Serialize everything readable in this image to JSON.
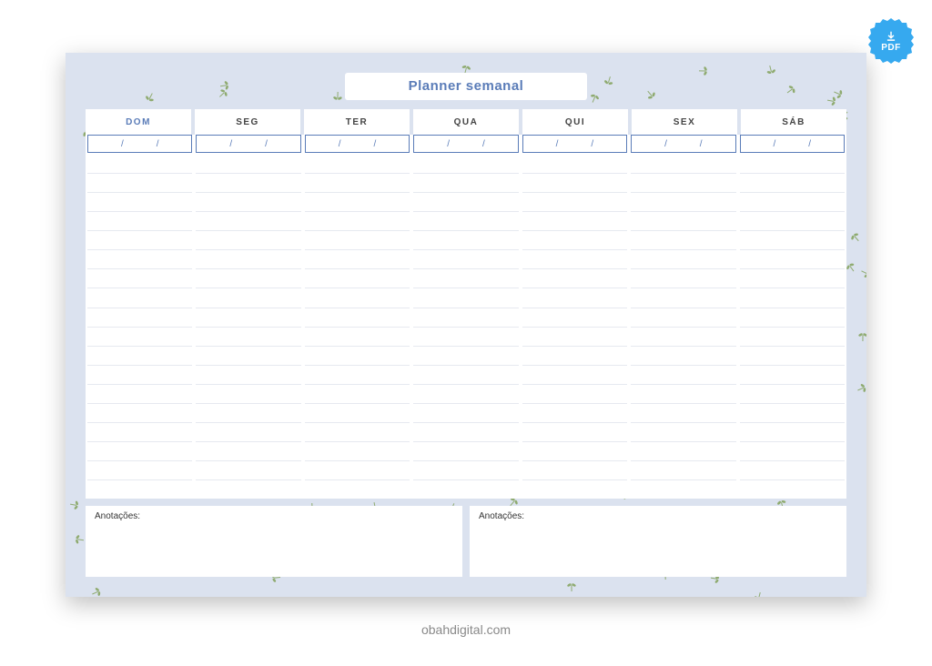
{
  "badge": {
    "label": "PDF",
    "color": "#36a9ef"
  },
  "planner": {
    "title": "Planner semanal",
    "title_color": "#5a7cb8",
    "border_bg": "#dbe2ef",
    "days": [
      "DOM",
      "SEG",
      "TER",
      "QUA",
      "QUI",
      "SEX",
      "SÁB"
    ],
    "first_day_color": "#5a7cb8",
    "day_color": "#444444",
    "date_separator": "/",
    "date_border_color": "#5a7cb8",
    "rows_per_day": 18,
    "line_color": "#e6e9f0",
    "notes_label_1": "Anotações:",
    "notes_label_2": "Anotações:",
    "leaf_color": "#8fab70"
  },
  "footer": {
    "text": "obahdigital.com",
    "color": "#8a8a8a"
  }
}
